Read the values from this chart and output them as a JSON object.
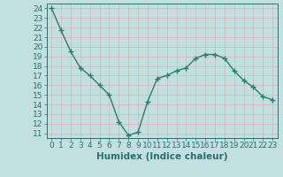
{
  "x": [
    0,
    1,
    2,
    3,
    4,
    5,
    6,
    7,
    8,
    9,
    10,
    11,
    12,
    13,
    14,
    15,
    16,
    17,
    18,
    19,
    20,
    21,
    22,
    23
  ],
  "y": [
    24,
    21.7,
    19.5,
    17.8,
    17.0,
    16.0,
    15.0,
    12.2,
    10.8,
    11.1,
    14.3,
    16.7,
    17.0,
    17.5,
    17.8,
    18.8,
    19.2,
    19.2,
    18.8,
    17.5,
    16.5,
    15.8,
    14.8,
    14.5
  ],
  "line_color": "#2d7d6e",
  "marker": "+",
  "marker_size": 4,
  "line_width": 1.0,
  "bg_color": "#c2e0e0",
  "grid_color": "#d8b8b8",
  "xlabel": "Humidex (Indice chaleur)",
  "ylim_min": 10.5,
  "ylim_max": 24.5,
  "xlim_min": -0.5,
  "xlim_max": 23.5,
  "yticks": [
    11,
    12,
    13,
    14,
    15,
    16,
    17,
    18,
    19,
    20,
    21,
    22,
    23,
    24
  ],
  "xticks": [
    0,
    1,
    2,
    3,
    4,
    5,
    6,
    7,
    8,
    9,
    10,
    11,
    12,
    13,
    14,
    15,
    16,
    17,
    18,
    19,
    20,
    21,
    22,
    23
  ],
  "tick_color": "#2d6e6e",
  "label_fontsize": 6.5,
  "xlabel_fontsize": 7.5,
  "markeredgewidth": 1.0
}
